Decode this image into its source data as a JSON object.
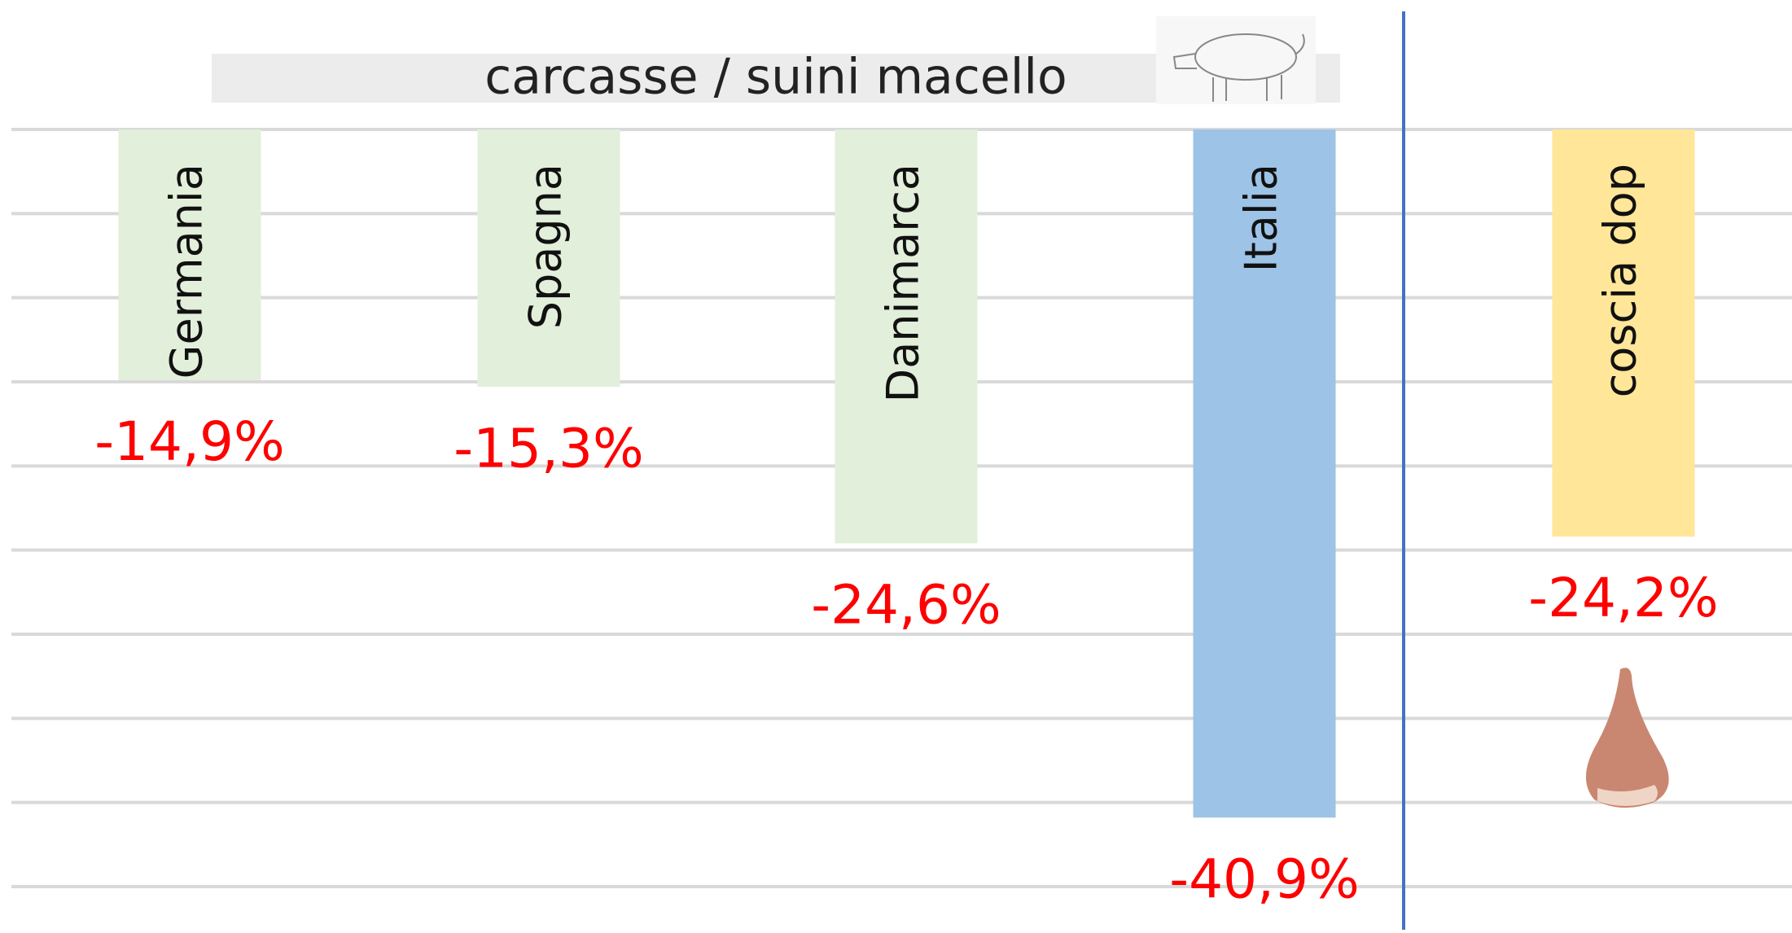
{
  "chart_data": {
    "type": "bar",
    "title": "carcasse / suini macello",
    "categories": [
      "Germania",
      "Spagna",
      "Danimarca",
      "Italia",
      "coscia dop"
    ],
    "values": [
      -14.9,
      -15.3,
      -24.6,
      -40.9,
      -24.2
    ],
    "value_labels": [
      "-14,9%",
      "-15,3%",
      "-24,6%",
      "-40,9%",
      "-24,2%"
    ],
    "colors": [
      "#e2efda",
      "#e2efda",
      "#e2efda",
      "#9dc3e6",
      "#ffe699"
    ],
    "label_color": "#ff0000",
    "ylim": [
      0,
      -45
    ],
    "yticks": [
      0,
      -5,
      -10,
      -15,
      -20,
      -25,
      -30,
      -35,
      -40,
      -45
    ],
    "grid": true
  }
}
